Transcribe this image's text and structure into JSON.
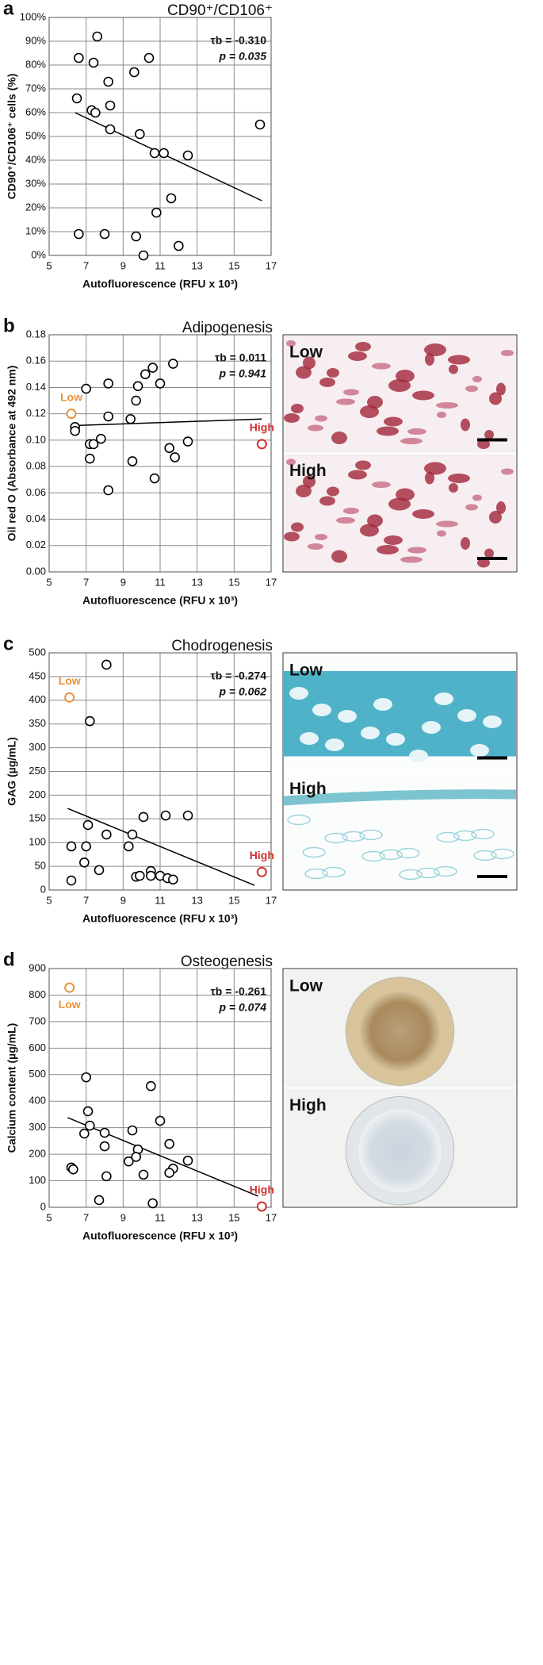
{
  "chart_data": [
    {
      "type": "scatter",
      "panel_label": "a",
      "title": "CD90⁺/CD106⁺",
      "x_label": "Autofluorescence (RFU x 10³)",
      "y_label": "CD90⁺/CD106⁺ cells (%)",
      "stats": [
        "τb = -0.310",
        "p = 0.035"
      ],
      "grid": true,
      "point_color": "#000000",
      "x": [
        6.6,
        7.6,
        7.4,
        6.5,
        7.3,
        7.5,
        8.2,
        8.3,
        8.3,
        9.6,
        10.4,
        9.9,
        10.7,
        11.2,
        12.5,
        11.6,
        10.8,
        8.0,
        6.6,
        9.7,
        12.0,
        10.1,
        16.4
      ],
      "y": [
        83,
        92,
        81,
        66,
        61,
        60,
        73,
        63,
        53,
        77,
        83,
        51,
        43,
        43,
        42,
        24,
        18,
        9,
        9,
        8,
        4,
        0,
        55
      ],
      "fit_line": {
        "x": [
          6.4,
          16.5
        ],
        "y": [
          60,
          23
        ]
      },
      "xlim": [
        5,
        17
      ],
      "xticks": [
        5,
        7,
        9,
        11,
        13,
        15,
        17
      ],
      "ylim": [
        0,
        100
      ],
      "yticks": [
        {
          "value": 0,
          "label": "0%"
        },
        {
          "value": 10,
          "label": "10%"
        },
        {
          "value": 20,
          "label": "20%"
        },
        {
          "value": 30,
          "label": "30%"
        },
        {
          "value": 40,
          "label": "40%"
        },
        {
          "value": 50,
          "label": "50%"
        },
        {
          "value": 60,
          "label": "60%"
        },
        {
          "value": 70,
          "label": "70%"
        },
        {
          "value": 80,
          "label": "80%"
        },
        {
          "value": 90,
          "label": "90%"
        },
        {
          "value": 100,
          "label": "100%"
        }
      ],
      "highlights": [],
      "images": []
    },
    {
      "type": "scatter",
      "panel_label": "b",
      "title": "Adipogenesis",
      "x_label": "Autofluorescence (RFU x 10³)",
      "y_label": "Oil red O (Absorbance at 492 nm)",
      "stats": [
        "τb = 0.011",
        "p = 0.941"
      ],
      "grid": true,
      "point_color": "#000000",
      "x": [
        7.0,
        8.2,
        11.7,
        10.6,
        10.2,
        9.8,
        11.0,
        9.7,
        8.2,
        9.4,
        6.4,
        6.4,
        7.8,
        7.2,
        7.4,
        12.5,
        11.5,
        7.2,
        9.5,
        11.8,
        10.7,
        8.2
      ],
      "y": [
        0.139,
        0.143,
        0.158,
        0.155,
        0.15,
        0.141,
        0.143,
        0.13,
        0.118,
        0.116,
        0.11,
        0.107,
        0.101,
        0.097,
        0.097,
        0.099,
        0.094,
        0.086,
        0.084,
        0.087,
        0.071,
        0.062
      ],
      "fit_line": {
        "x": [
          6.2,
          16.5
        ],
        "y": [
          0.111,
          0.116
        ]
      },
      "xlim": [
        5,
        17
      ],
      "xticks": [
        5,
        7,
        9,
        11,
        13,
        15,
        17
      ],
      "ylim": [
        0,
        0.18
      ],
      "yticks": [
        {
          "value": 0,
          "label": "0.00"
        },
        {
          "value": 0.02,
          "label": "0.02"
        },
        {
          "value": 0.04,
          "label": "0.04"
        },
        {
          "value": 0.06,
          "label": "0.06"
        },
        {
          "value": 0.08,
          "label": "0.08"
        },
        {
          "value": 0.1,
          "label": "0.10"
        },
        {
          "value": 0.12,
          "label": "0.12"
        },
        {
          "value": 0.14,
          "label": "0.14"
        },
        {
          "value": 0.16,
          "label": "0.16"
        },
        {
          "value": 0.18,
          "label": "0.18"
        }
      ],
      "highlights": [
        {
          "label": "Low",
          "x": 6.2,
          "y": 0.12,
          "color": "#e8923a"
        },
        {
          "label": "High",
          "x": 16.5,
          "y": 0.097,
          "color": "#d0312d"
        }
      ],
      "images": [
        {
          "label": "Low"
        },
        {
          "label": "High"
        }
      ]
    },
    {
      "type": "scatter",
      "panel_label": "c",
      "title": "Chodrogenesis",
      "x_label": "Autofluorescence (RFU x 10³)",
      "y_label": "GAG (µg/mL)",
      "stats": [
        "τb = -0.274",
        "p = 0.062"
      ],
      "grid": true,
      "point_color": "#000000",
      "x": [
        8.1,
        7.2,
        11.3,
        12.5,
        10.1,
        7.1,
        9.5,
        8.1,
        6.2,
        7.0,
        9.3,
        10.5,
        10.5,
        9.7,
        9.9,
        11.0,
        11.4,
        11.7,
        7.7,
        6.9,
        6.2
      ],
      "y": [
        475,
        356,
        157,
        157,
        154,
        137,
        117,
        117,
        92,
        92,
        92,
        40,
        30,
        28,
        30,
        30,
        25,
        22,
        42,
        58,
        20
      ],
      "fit_line": {
        "x": [
          6.0,
          16.1
        ],
        "y": [
          172,
          10
        ]
      },
      "xlim": [
        5,
        17
      ],
      "xticks": [
        5,
        7,
        9,
        11,
        13,
        15,
        17
      ],
      "ylim": [
        0,
        500
      ],
      "yticks": [
        0,
        50,
        100,
        150,
        200,
        250,
        300,
        350,
        400,
        450,
        500
      ],
      "highlights": [
        {
          "label": "Low",
          "x": 6.1,
          "y": 406,
          "color": "#e8923a"
        },
        {
          "label": "High",
          "x": 16.5,
          "y": 38,
          "color": "#d0312d"
        }
      ],
      "images": [
        {
          "label": "Low"
        },
        {
          "label": "High"
        }
      ]
    },
    {
      "type": "scatter",
      "panel_label": "d",
      "title": "Osteogenesis",
      "x_label": "Autofluorescence (RFU x 10³)",
      "y_label": "Calcium content (µg/mL)",
      "stats": [
        "τb = -0.261",
        "p = 0.074"
      ],
      "grid": true,
      "point_color": "#000000",
      "x": [
        7.0,
        7.1,
        7.2,
        6.9,
        10.5,
        11.0,
        9.5,
        8.0,
        11.5,
        8.0,
        9.8,
        9.7,
        9.3,
        12.5,
        11.7,
        11.5,
        6.2,
        6.3,
        10.1,
        8.1,
        7.7,
        10.6
      ],
      "y": [
        490,
        362,
        308,
        278,
        457,
        326,
        290,
        281,
        239,
        230,
        218,
        190,
        173,
        176,
        146,
        130,
        150,
        143,
        123,
        117,
        27,
        15
      ],
      "fit_line": {
        "x": [
          6.0,
          16.3
        ],
        "y": [
          338,
          42
        ]
      },
      "xlim": [
        5,
        17
      ],
      "xticks": [
        5,
        7,
        9,
        11,
        13,
        15,
        17
      ],
      "ylim": [
        0,
        900
      ],
      "yticks": [
        0,
        100,
        200,
        300,
        400,
        500,
        600,
        700,
        800,
        900
      ],
      "highlights": [
        {
          "label": "Low",
          "x": 6.1,
          "y": 828,
          "color": "#e8923a"
        },
        {
          "label": "High",
          "x": 16.5,
          "y": 3,
          "color": "#d0312d"
        }
      ],
      "images": [
        {
          "label": "Low"
        },
        {
          "label": "High"
        }
      ]
    }
  ]
}
